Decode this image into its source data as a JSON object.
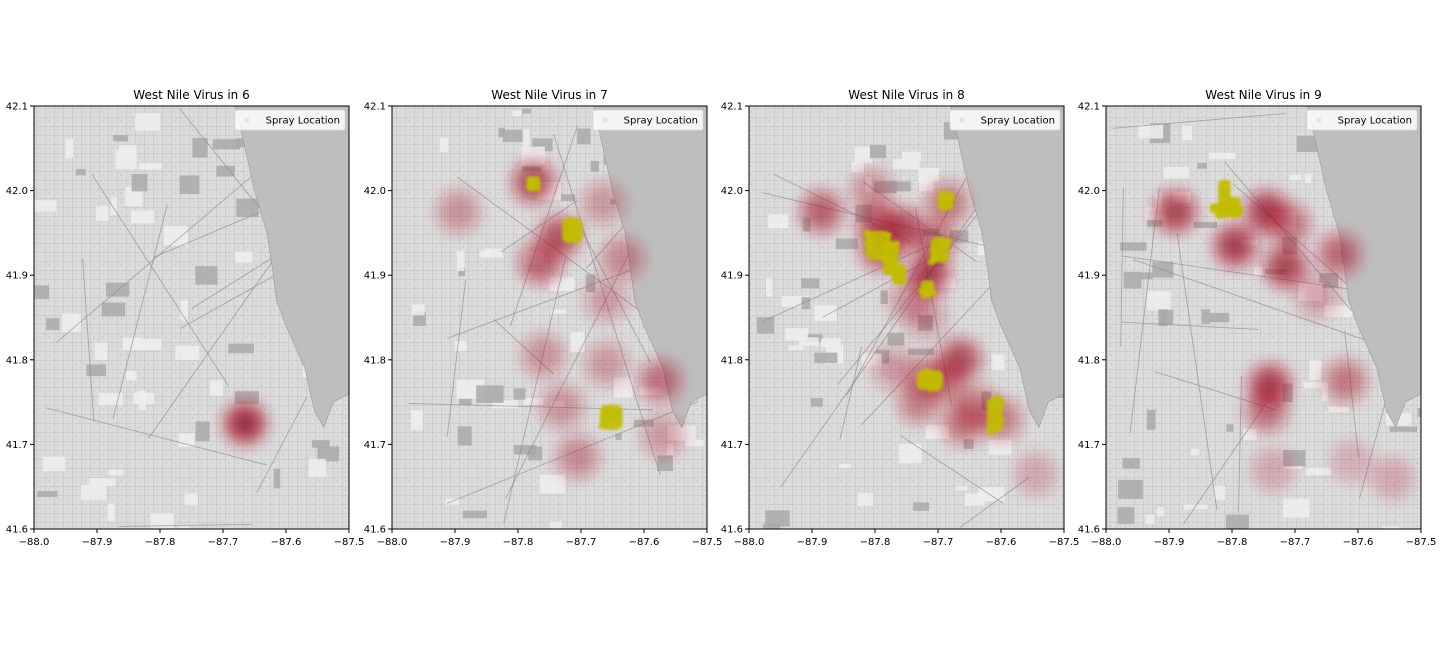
{
  "chart_data": [
    {
      "type": "heatmap",
      "title": "West Nile Virus in 6",
      "xlim": [
        -88.0,
        -87.5
      ],
      "ylim": [
        41.6,
        42.1
      ],
      "xticks": [
        "−88.0",
        "−87.9",
        "−87.8",
        "−87.7",
        "−87.6",
        "−87.5"
      ],
      "yticks": [
        "41.6",
        "41.7",
        "41.8",
        "41.9",
        "42.0",
        "42.1"
      ],
      "legend": {
        "label": "Spray Location",
        "position": "upper right"
      },
      "heat": [
        {
          "lon": -87.665,
          "lat": 41.725,
          "intensity": 1.0
        }
      ],
      "spray": []
    },
    {
      "type": "heatmap",
      "title": "West Nile Virus in 7",
      "xlim": [
        -88.0,
        -87.5
      ],
      "ylim": [
        41.6,
        42.1
      ],
      "xticks": [
        "−88.0",
        "−87.9",
        "−87.8",
        "−87.7",
        "−87.6",
        "−87.5"
      ],
      "yticks": [
        "41.6",
        "41.7",
        "41.8",
        "41.9",
        "42.0",
        "42.1"
      ],
      "legend": {
        "label": "Spray Location",
        "position": "upper right"
      },
      "heat": [
        {
          "lon": -87.775,
          "lat": 42.01,
          "intensity": 0.8
        },
        {
          "lon": -87.735,
          "lat": 41.945,
          "intensity": 0.75
        },
        {
          "lon": -87.765,
          "lat": 41.915,
          "intensity": 0.7
        },
        {
          "lon": -87.895,
          "lat": 41.975,
          "intensity": 0.4
        },
        {
          "lon": -87.665,
          "lat": 41.985,
          "intensity": 0.35
        },
        {
          "lon": -87.635,
          "lat": 41.92,
          "intensity": 0.45
        },
        {
          "lon": -87.66,
          "lat": 41.87,
          "intensity": 0.3
        },
        {
          "lon": -87.76,
          "lat": 41.805,
          "intensity": 0.4
        },
        {
          "lon": -87.66,
          "lat": 41.795,
          "intensity": 0.35
        },
        {
          "lon": -87.575,
          "lat": 41.775,
          "intensity": 0.6
        },
        {
          "lon": -87.73,
          "lat": 41.745,
          "intensity": 0.4
        },
        {
          "lon": -87.57,
          "lat": 41.71,
          "intensity": 0.35
        },
        {
          "lon": -87.705,
          "lat": 41.685,
          "intensity": 0.45
        }
      ],
      "spray": [
        {
          "lon": -87.775,
          "lat": 42.008,
          "w": 0.022,
          "h": 0.018
        },
        {
          "lon": -87.714,
          "lat": 41.953,
          "w": 0.032,
          "h": 0.03
        },
        {
          "lon": -87.652,
          "lat": 41.732,
          "w": 0.036,
          "h": 0.03
        }
      ]
    },
    {
      "type": "heatmap",
      "title": "West Nile Virus in 8",
      "xlim": [
        -88.0,
        -87.5
      ],
      "ylim": [
        41.6,
        42.1
      ],
      "xticks": [
        "−88.0",
        "−87.9",
        "−87.8",
        "−87.7",
        "−87.6",
        "−87.5"
      ],
      "yticks": [
        "41.6",
        "41.7",
        "41.8",
        "41.9",
        "42.0",
        "42.1"
      ],
      "legend": {
        "label": "Spray Location",
        "position": "upper right"
      },
      "heat": [
        {
          "lon": -87.885,
          "lat": 41.975,
          "intensity": 0.7
        },
        {
          "lon": -87.795,
          "lat": 41.96,
          "intensity": 0.75
        },
        {
          "lon": -87.755,
          "lat": 41.955,
          "intensity": 0.8
        },
        {
          "lon": -87.79,
          "lat": 41.93,
          "intensity": 0.7
        },
        {
          "lon": -87.715,
          "lat": 41.9,
          "intensity": 0.9
        },
        {
          "lon": -87.685,
          "lat": 41.985,
          "intensity": 0.55
        },
        {
          "lon": -87.705,
          "lat": 41.94,
          "intensity": 0.6
        },
        {
          "lon": -87.805,
          "lat": 42.0,
          "intensity": 0.4
        },
        {
          "lon": -87.745,
          "lat": 41.87,
          "intensity": 0.35
        },
        {
          "lon": -87.72,
          "lat": 41.85,
          "intensity": 0.3
        },
        {
          "lon": -87.665,
          "lat": 41.8,
          "intensity": 0.8
        },
        {
          "lon": -87.69,
          "lat": 41.775,
          "intensity": 0.55
        },
        {
          "lon": -87.73,
          "lat": 41.75,
          "intensity": 0.5
        },
        {
          "lon": -87.72,
          "lat": 41.78,
          "intensity": 0.45
        },
        {
          "lon": -87.64,
          "lat": 41.745,
          "intensity": 0.5
        },
        {
          "lon": -87.66,
          "lat": 41.725,
          "intensity": 0.55
        },
        {
          "lon": -87.6,
          "lat": 41.73,
          "intensity": 0.5
        },
        {
          "lon": -87.545,
          "lat": 41.665,
          "intensity": 0.2
        },
        {
          "lon": -87.77,
          "lat": 41.79,
          "intensity": 0.3
        }
      ],
      "spray": [
        {
          "lon": -87.795,
          "lat": 41.935,
          "w": 0.04,
          "h": 0.035
        },
        {
          "lon": -87.775,
          "lat": 41.92,
          "w": 0.025,
          "h": 0.04
        },
        {
          "lon": -87.762,
          "lat": 41.9,
          "w": 0.022,
          "h": 0.022
        },
        {
          "lon": -87.688,
          "lat": 41.988,
          "w": 0.025,
          "h": 0.022
        },
        {
          "lon": -87.697,
          "lat": 41.93,
          "w": 0.03,
          "h": 0.03
        },
        {
          "lon": -87.717,
          "lat": 41.884,
          "w": 0.022,
          "h": 0.02
        },
        {
          "lon": -87.713,
          "lat": 41.776,
          "w": 0.042,
          "h": 0.024
        },
        {
          "lon": -87.61,
          "lat": 41.735,
          "w": 0.025,
          "h": 0.04
        }
      ]
    },
    {
      "type": "heatmap",
      "title": "West Nile Virus in 9",
      "xlim": [
        -88.0,
        -87.5
      ],
      "ylim": [
        41.6,
        42.1
      ],
      "xticks": [
        "−88.0",
        "−87.9",
        "−87.8",
        "−87.7",
        "−87.6",
        "−87.5"
      ],
      "yticks": [
        "41.6",
        "41.7",
        "41.8",
        "41.9",
        "42.0",
        "42.1"
      ],
      "legend": {
        "label": "Spray Location",
        "position": "upper right"
      },
      "heat": [
        {
          "lon": -87.89,
          "lat": 41.975,
          "intensity": 0.85
        },
        {
          "lon": -87.795,
          "lat": 41.935,
          "intensity": 0.9
        },
        {
          "lon": -87.745,
          "lat": 41.975,
          "intensity": 0.9
        },
        {
          "lon": -87.71,
          "lat": 41.96,
          "intensity": 0.6
        },
        {
          "lon": -87.715,
          "lat": 41.91,
          "intensity": 0.85
        },
        {
          "lon": -87.63,
          "lat": 41.925,
          "intensity": 0.65
        },
        {
          "lon": -87.665,
          "lat": 41.875,
          "intensity": 0.3
        },
        {
          "lon": -87.74,
          "lat": 41.77,
          "intensity": 0.9
        },
        {
          "lon": -87.745,
          "lat": 41.74,
          "intensity": 0.6
        },
        {
          "lon": -87.62,
          "lat": 41.775,
          "intensity": 0.55
        },
        {
          "lon": -87.735,
          "lat": 41.67,
          "intensity": 0.2
        },
        {
          "lon": -87.545,
          "lat": 41.66,
          "intensity": 0.2
        },
        {
          "lon": -87.61,
          "lat": 41.68,
          "intensity": 0.15
        }
      ],
      "spray": [
        {
          "lon": -87.812,
          "lat": 41.99,
          "w": 0.02,
          "h": 0.045
        },
        {
          "lon": -87.815,
          "lat": 41.979,
          "w": 0.04,
          "h": 0.012
        },
        {
          "lon": -87.795,
          "lat": 41.98,
          "w": 0.018,
          "h": 0.025
        }
      ]
    }
  ],
  "colors": {
    "heat_color": "#b2182b",
    "heat_dark": "#67001f",
    "spray_color": "#c2bd00",
    "map_land": "#dcdcdc",
    "map_water": "#bebebe",
    "axis_color": "#000000"
  }
}
